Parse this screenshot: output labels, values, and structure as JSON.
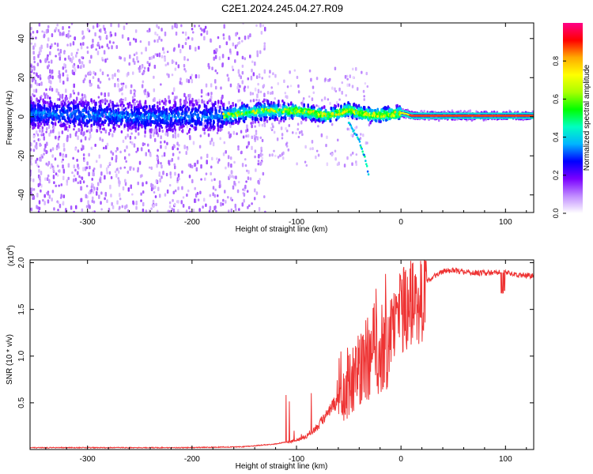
{
  "title": "C2E1.2024.245.04.27.R09",
  "chart_data": [
    {
      "type": "heatmap",
      "xlabel": "Height of straight line (km)",
      "ylabel": "Frequency (Hz)",
      "xlim": [
        -355,
        127
      ],
      "ylim": [
        -49,
        48
      ],
      "xticks": [
        -300,
        -200,
        -100,
        0,
        100
      ],
      "yticks": [
        -40,
        -20,
        0,
        20,
        40
      ],
      "ridge": {
        "x": [
          -355,
          -300,
          -250,
          -200,
          -170,
          -150,
          -130,
          -110,
          -100,
          -90,
          -80,
          -70,
          -60,
          -50,
          -40,
          -30,
          -20,
          -10,
          0,
          5,
          10,
          50,
          100,
          127
        ],
        "y": [
          2,
          1,
          0,
          0,
          0.5,
          2,
          3,
          3,
          3,
          2.5,
          1.5,
          0.5,
          2,
          3.5,
          2,
          1,
          1,
          1,
          2,
          1.5,
          0.5,
          0.5,
          0.5,
          0.5
        ]
      },
      "branch": {
        "x": [
          -50,
          -40,
          -34,
          -31
        ],
        "y": [
          -3,
          -12,
          -22,
          -30
        ]
      },
      "colorbar": {
        "label": "Normalized spectral amplitude",
        "range": [
          0,
          1
        ],
        "ticks": [
          "0.0",
          "0.2",
          "0.4",
          "0.6",
          "0.8"
        ],
        "tick_values": [
          0,
          0.2,
          0.4,
          0.6,
          0.8
        ],
        "colors": [
          "#ffffff",
          "#c08cff",
          "#7a00ff",
          "#0000ff",
          "#00b4ff",
          "#00ffc0",
          "#00ff00",
          "#aaff00",
          "#ffff00",
          "#ffaa00",
          "#ff0000",
          "#ff0088"
        ]
      }
    },
    {
      "type": "line",
      "xlabel": "Height of straight line (km)",
      "ylabel": "SNR (10 * v/v)",
      "scale_label": "(x10",
      "scale_exp": "4",
      "xlim": [
        -355,
        127
      ],
      "ylim": [
        0,
        2.03
      ],
      "xticks": [
        -300,
        -200,
        -100,
        0,
        100
      ],
      "yticks": [
        0.5,
        1.0,
        1.5,
        2.0
      ],
      "ytick_labels": [
        "0.5",
        "1.0",
        "1.5",
        "2.0"
      ],
      "color": "#ee3333",
      "envelope": {
        "x": [
          -355,
          -200,
          -150,
          -120,
          -100,
          -90,
          -80,
          -70,
          -60,
          -50,
          -40,
          -30,
          -20,
          -15,
          -10,
          -5,
          0,
          5,
          10,
          20,
          30,
          40,
          50,
          60,
          80,
          100,
          110,
          127
        ],
        "y": [
          0.02,
          0.02,
          0.03,
          0.06,
          0.1,
          0.15,
          0.25,
          0.4,
          0.55,
          0.75,
          0.95,
          1.1,
          1.25,
          1.2,
          1.3,
          1.45,
          1.55,
          1.6,
          1.67,
          1.75,
          1.84,
          1.91,
          1.92,
          1.9,
          1.89,
          1.9,
          1.87,
          1.86
        ]
      }
    }
  ]
}
